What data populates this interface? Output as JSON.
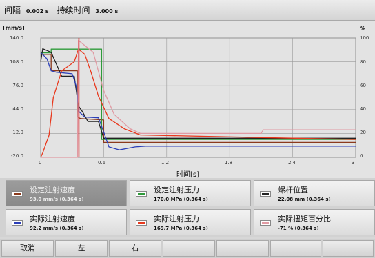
{
  "header": {
    "interval_label": "间隔",
    "interval_value": "0.002 s",
    "duration_label": "持续时间",
    "duration_value": "3.000 s"
  },
  "plot": {
    "left_unit": "[mm/s]",
    "right_unit": "%",
    "x_label": "时间[s]",
    "y_ticks_left": [
      "140.0",
      "108.0",
      "76.0",
      "44.0",
      "12.0",
      "-20.0"
    ],
    "y_ticks_right": [
      "100",
      "80",
      "60",
      "40",
      "20",
      "0"
    ],
    "x_ticks": [
      "0",
      "0.6",
      "1.2",
      "1.8",
      "2.4",
      "3"
    ]
  },
  "chart_data": {
    "type": "line",
    "xlabel": "时间[s]",
    "ylabel": "[mm/s]",
    "y2label": "%",
    "xlim": [
      0,
      3
    ],
    "ylim": [
      -20,
      140
    ],
    "y2lim": [
      0,
      100
    ],
    "cursor_x": 0.364,
    "grid": true,
    "series": [
      {
        "name": "设定注射速度",
        "color": "#8b3a1c",
        "axis": "left",
        "x": [
          0,
          0.02,
          0.1,
          0.1,
          0.35,
          0.35,
          0.38,
          0.6,
          0.6,
          3.0
        ],
        "y": [
          118,
          118,
          118,
          96,
          96,
          34,
          32,
          30,
          0,
          0
        ]
      },
      {
        "name": "设定注射压力",
        "color": "#2e9b3a",
        "axis": "left",
        "x": [
          0,
          0.02,
          0.1,
          0.1,
          0.58,
          0.58,
          3.0
        ],
        "y": [
          120,
          120,
          120,
          125,
          125,
          4,
          4
        ]
      },
      {
        "name": "螺杆位置",
        "color": "#222222",
        "axis": "right",
        "x": [
          0,
          0.02,
          0.1,
          0.2,
          0.32,
          0.36,
          0.4,
          0.45,
          0.55,
          0.6,
          3.0
        ],
        "y": [
          80,
          91,
          88,
          68,
          68,
          43,
          38,
          30,
          30,
          16,
          16
        ]
      },
      {
        "name": "实际注射速度",
        "color": "#2c3fb8",
        "axis": "left",
        "x": [
          0,
          0.02,
          0.06,
          0.1,
          0.15,
          0.3,
          0.34,
          0.36,
          0.42,
          0.55,
          0.6,
          0.65,
          0.75,
          0.9,
          1.0,
          3.0
        ],
        "y": [
          120,
          118,
          112,
          96,
          94,
          92,
          75,
          42,
          34,
          33,
          14,
          -6,
          -10,
          -6,
          -5,
          -5
        ]
      },
      {
        "name": "实际注射压力",
        "color": "#e8391e",
        "axis": "left",
        "x": [
          0,
          0.02,
          0.08,
          0.12,
          0.2,
          0.32,
          0.36,
          0.42,
          0.48,
          0.55,
          0.65,
          0.8,
          0.95,
          3.0
        ],
        "y": [
          -20,
          -14,
          10,
          60,
          96,
          108,
          125,
          118,
          94,
          62,
          32,
          18,
          10,
          4
        ]
      },
      {
        "name": "实际扭矩百分比",
        "color": "#e09aa3",
        "axis": "right",
        "x": [
          0,
          0.1,
          0.35,
          0.36,
          0.5,
          0.6,
          0.7,
          0.85,
          0.95,
          2.1,
          2.12,
          3.0
        ],
        "y": [
          0,
          0,
          0,
          98,
          88,
          56,
          36,
          24,
          20,
          20,
          23,
          23
        ]
      }
    ]
  },
  "legend": {
    "items": [
      {
        "label": "设定注射速度",
        "value": "93.0 mm/s (0.364 s)",
        "color": "#8b3a1c"
      },
      {
        "label": "设定注射压力",
        "value": "170.0 MPa (0.364 s)",
        "color": "#2e9b3a"
      },
      {
        "label": "螺杆位置",
        "value": "22.08 mm (0.364 s)",
        "color": "#222222"
      },
      {
        "label": "实际注射速度",
        "value": "92.2 mm/s (0.364 s)",
        "color": "#2c3fb8"
      },
      {
        "label": "实际注射压力",
        "value": "169.7 MPa (0.364 s)",
        "color": "#e8391e"
      },
      {
        "label": "实际扭矩百分比",
        "value": "-71 % (0.364 s)",
        "color": "#e09aa3"
      }
    ]
  },
  "softkeys": {
    "cancel": "取消",
    "left": "左",
    "right": "右",
    "blank1": "",
    "blank2": "",
    "blank3": "",
    "blank4": ""
  },
  "colors": {
    "cursor": "#e01010",
    "grid": "#9a9a9a",
    "plot_bg": "#e3e3e3"
  }
}
